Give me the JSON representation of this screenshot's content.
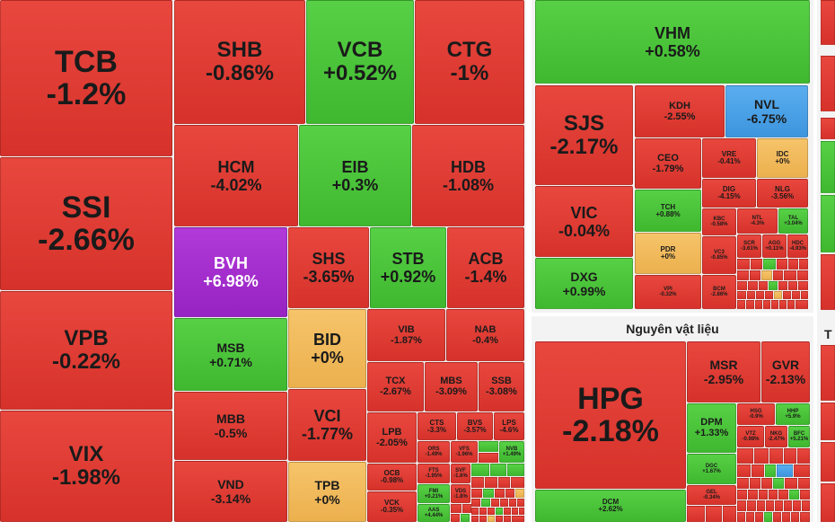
{
  "sectors": {
    "materials_title": "Nguyên vật liệu",
    "right_edge_title": "T"
  },
  "tiles": {
    "TCB": {
      "ticker": "TCB",
      "change": "-1.2%"
    },
    "SSI": {
      "ticker": "SSI",
      "change": "-2.66%"
    },
    "VPB": {
      "ticker": "VPB",
      "change": "-0.22%"
    },
    "VIX": {
      "ticker": "VIX",
      "change": "-1.98%"
    },
    "SHB": {
      "ticker": "SHB",
      "change": "-0.86%"
    },
    "VCB": {
      "ticker": "VCB",
      "change": "+0.52%"
    },
    "CTG": {
      "ticker": "CTG",
      "change": "-1%"
    },
    "HCM": {
      "ticker": "HCM",
      "change": "-4.02%"
    },
    "EIB": {
      "ticker": "EIB",
      "change": "+0.3%"
    },
    "HDB": {
      "ticker": "HDB",
      "change": "-1.08%"
    },
    "BVH": {
      "ticker": "BVH",
      "change": "+6.98%"
    },
    "SHS": {
      "ticker": "SHS",
      "change": "-3.65%"
    },
    "STB": {
      "ticker": "STB",
      "change": "+0.92%"
    },
    "ACB": {
      "ticker": "ACB",
      "change": "-1.4%"
    },
    "MSB": {
      "ticker": "MSB",
      "change": "+0.71%"
    },
    "BID": {
      "ticker": "BID",
      "change": "+0%"
    },
    "VIB": {
      "ticker": "VIB",
      "change": "-1.87%"
    },
    "NAB": {
      "ticker": "NAB",
      "change": "-0.4%"
    },
    "MBB": {
      "ticker": "MBB",
      "change": "-0.5%"
    },
    "VCI": {
      "ticker": "VCI",
      "change": "-1.77%"
    },
    "TCX": {
      "ticker": "TCX",
      "change": "-2.67%"
    },
    "MBS": {
      "ticker": "MBS",
      "change": "-3.09%"
    },
    "SSB": {
      "ticker": "SSB",
      "change": "-3.08%"
    },
    "LPB": {
      "ticker": "LPB",
      "change": "-2.05%"
    },
    "CTS": {
      "ticker": "CTS",
      "change": "-3.3%"
    },
    "BVS": {
      "ticker": "BVS",
      "change": "-3.57%"
    },
    "LPS": {
      "ticker": "LPS",
      "change": "-4.6%"
    },
    "ORS": {
      "ticker": "ORS",
      "change": "-1.49%"
    },
    "VFS": {
      "ticker": "VFS",
      "change": "-1.96%"
    },
    "NVB": {
      "ticker": "NVB",
      "change": "+1.49%"
    },
    "VND": {
      "ticker": "VND",
      "change": "-3.14%"
    },
    "TPB": {
      "ticker": "TPB",
      "change": "+0%"
    },
    "OCB": {
      "ticker": "OCB",
      "change": "-0.98%"
    },
    "FTS": {
      "ticker": "FTS",
      "change": "-1.95%"
    },
    "SVF": {
      "ticker": "SVF",
      "change": "-1.6%"
    },
    "FMI": {
      "ticker": "FMI",
      "change": "+0.21%"
    },
    "VDS": {
      "ticker": "VDS",
      "change": "-1.8%"
    },
    "VCK": {
      "ticker": "VCK",
      "change": "-0.35%"
    },
    "AAS": {
      "ticker": "AAS",
      "change": "+4.44%"
    },
    "VHM": {
      "ticker": "VHM",
      "change": "+0.58%"
    },
    "SJS": {
      "ticker": "SJS",
      "change": "-2.17%"
    },
    "KDH": {
      "ticker": "KDH",
      "change": "-2.55%"
    },
    "NVL": {
      "ticker": "NVL",
      "change": "-6.75%"
    },
    "CEO": {
      "ticker": "CEO",
      "change": "-1.79%"
    },
    "VRE": {
      "ticker": "VRE",
      "change": "-0.41%"
    },
    "IDC": {
      "ticker": "IDC",
      "change": "+0%"
    },
    "DIG": {
      "ticker": "DIG",
      "change": "-4.15%"
    },
    "NLG": {
      "ticker": "NLG",
      "change": "-3.56%"
    },
    "VIC": {
      "ticker": "VIC",
      "change": "-0.04%"
    },
    "TCH": {
      "ticker": "TCH",
      "change": "+0.88%"
    },
    "KBC": {
      "ticker": "KBC",
      "change": "-0.58%"
    },
    "NTL": {
      "ticker": "NTL",
      "change": "-4.3%"
    },
    "TAL": {
      "ticker": "TAL",
      "change": "+3.04%"
    },
    "PDR": {
      "ticker": "PDR",
      "change": "+0%"
    },
    "SCR": {
      "ticker": "SCR",
      "change": "-3.61%"
    },
    "AGG": {
      "ticker": "AGG",
      "change": "+0.11%"
    },
    "HDC": {
      "ticker": "HDC",
      "change": "-4.93%"
    },
    "VC3": {
      "ticker": "VC3",
      "change": "-0.85%"
    },
    "DXG": {
      "ticker": "DXG",
      "change": "+0.99%"
    },
    "VPI": {
      "ticker": "VPI",
      "change": "-0.32%"
    },
    "BCM": {
      "ticker": "BCM",
      "change": "-2.86%"
    },
    "HPG": {
      "ticker": "HPG",
      "change": "-2.18%"
    },
    "MSR": {
      "ticker": "MSR",
      "change": "-2.95%"
    },
    "GVR": {
      "ticker": "GVR",
      "change": "-2.13%"
    },
    "DPM": {
      "ticker": "DPM",
      "change": "+1.33%"
    },
    "HSG": {
      "ticker": "HSG",
      "change": "-0.9%"
    },
    "HHP": {
      "ticker": "HHP",
      "change": "+5.9%"
    },
    "VTZ": {
      "ticker": "VTZ",
      "change": "-0.98%"
    },
    "NKG": {
      "ticker": "NKG",
      "change": "-2.47%"
    },
    "BFC": {
      "ticker": "BFC",
      "change": "+5.21%"
    },
    "DGC": {
      "ticker": "DGC",
      "change": "+1.67%"
    },
    "GEL": {
      "ticker": "GEL",
      "change": "-0.34%"
    },
    "DCM": {
      "ticker": "DCM",
      "change": "+2.62%"
    }
  },
  "colors": {
    "down": "#d9352d",
    "up": "#44bb33",
    "flat": "#f0b85a",
    "floor": "#4a9fe6",
    "ceiling": "#a02cc9"
  }
}
